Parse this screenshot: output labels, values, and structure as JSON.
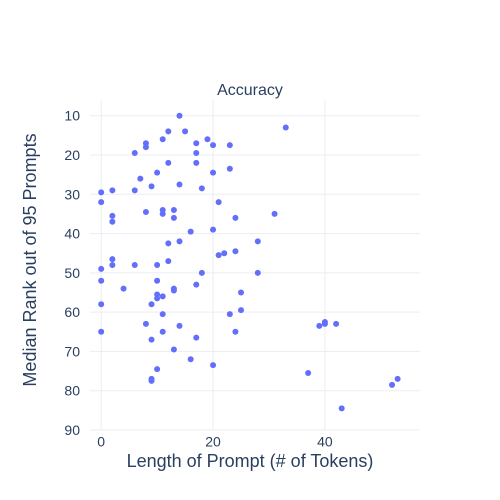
{
  "chart_data": {
    "type": "scatter",
    "title": "Accuracy",
    "xlabel": "Length of Prompt (# of Tokens)",
    "ylabel": "Median Rank out of 95 Prompts",
    "xlim": [
      -2,
      57
    ],
    "ylim": [
      90,
      6
    ],
    "y_reversed": true,
    "x_ticks": [
      0,
      20,
      40
    ],
    "y_ticks": [
      10,
      20,
      30,
      40,
      50,
      60,
      70,
      80,
      90
    ],
    "grid": true,
    "marker_color": "#636efa",
    "points": [
      {
        "x": 14,
        "y": 10
      },
      {
        "x": 33,
        "y": 13
      },
      {
        "x": 12,
        "y": 14
      },
      {
        "x": 15,
        "y": 14
      },
      {
        "x": 11,
        "y": 16
      },
      {
        "x": 19,
        "y": 16
      },
      {
        "x": 8,
        "y": 17
      },
      {
        "x": 17,
        "y": 17
      },
      {
        "x": 20,
        "y": 17.5
      },
      {
        "x": 23,
        "y": 17.5
      },
      {
        "x": 8,
        "y": 18
      },
      {
        "x": 6,
        "y": 19.5
      },
      {
        "x": 17,
        "y": 19.5
      },
      {
        "x": 12,
        "y": 22
      },
      {
        "x": 17,
        "y": 22
      },
      {
        "x": 23,
        "y": 23.5
      },
      {
        "x": 10,
        "y": 24.5
      },
      {
        "x": 20,
        "y": 24.5
      },
      {
        "x": 7,
        "y": 26
      },
      {
        "x": 14,
        "y": 27.5
      },
      {
        "x": 9,
        "y": 28
      },
      {
        "x": 18,
        "y": 28.5
      },
      {
        "x": 2,
        "y": 29
      },
      {
        "x": 6,
        "y": 29
      },
      {
        "x": 0,
        "y": 29.5
      },
      {
        "x": 0,
        "y": 32
      },
      {
        "x": 21,
        "y": 32
      },
      {
        "x": 8,
        "y": 34.5
      },
      {
        "x": 11,
        "y": 34
      },
      {
        "x": 13,
        "y": 34
      },
      {
        "x": 11,
        "y": 35
      },
      {
        "x": 31,
        "y": 35
      },
      {
        "x": 2,
        "y": 35.5
      },
      {
        "x": 13,
        "y": 36
      },
      {
        "x": 24,
        "y": 36
      },
      {
        "x": 2,
        "y": 37
      },
      {
        "x": 20,
        "y": 39
      },
      {
        "x": 16,
        "y": 39.5
      },
      {
        "x": 28,
        "y": 42
      },
      {
        "x": 12,
        "y": 42.5
      },
      {
        "x": 14,
        "y": 42
      },
      {
        "x": 24,
        "y": 44.5
      },
      {
        "x": 21,
        "y": 45.5
      },
      {
        "x": 22,
        "y": 45
      },
      {
        "x": 2,
        "y": 46.5
      },
      {
        "x": 12,
        "y": 47
      },
      {
        "x": 2,
        "y": 48
      },
      {
        "x": 6,
        "y": 48
      },
      {
        "x": 10,
        "y": 48
      },
      {
        "x": 0,
        "y": 49
      },
      {
        "x": 18,
        "y": 50
      },
      {
        "x": 28,
        "y": 50
      },
      {
        "x": 0,
        "y": 52
      },
      {
        "x": 10,
        "y": 52
      },
      {
        "x": 17,
        "y": 53
      },
      {
        "x": 4,
        "y": 54
      },
      {
        "x": 13,
        "y": 54
      },
      {
        "x": 13,
        "y": 54.5
      },
      {
        "x": 25,
        "y": 55
      },
      {
        "x": 10,
        "y": 55.5
      },
      {
        "x": 10,
        "y": 56.5
      },
      {
        "x": 11,
        "y": 56
      },
      {
        "x": 0,
        "y": 58
      },
      {
        "x": 9,
        "y": 58
      },
      {
        "x": 25,
        "y": 59.5
      },
      {
        "x": 23,
        "y": 60.5
      },
      {
        "x": 11,
        "y": 60.5
      },
      {
        "x": 40,
        "y": 62.5
      },
      {
        "x": 8,
        "y": 63
      },
      {
        "x": 39,
        "y": 63.5
      },
      {
        "x": 40,
        "y": 63
      },
      {
        "x": 42,
        "y": 63
      },
      {
        "x": 14,
        "y": 63.5
      },
      {
        "x": 0,
        "y": 65
      },
      {
        "x": 11,
        "y": 65
      },
      {
        "x": 24,
        "y": 65
      },
      {
        "x": 17,
        "y": 66.5
      },
      {
        "x": 9,
        "y": 67
      },
      {
        "x": 13,
        "y": 69.5
      },
      {
        "x": 16,
        "y": 72
      },
      {
        "x": 20,
        "y": 73.5
      },
      {
        "x": 10,
        "y": 74.5
      },
      {
        "x": 37,
        "y": 75.5
      },
      {
        "x": 9,
        "y": 77
      },
      {
        "x": 9,
        "y": 77.5
      },
      {
        "x": 53,
        "y": 77
      },
      {
        "x": 52,
        "y": 78.5
      },
      {
        "x": 43,
        "y": 84.5
      }
    ]
  }
}
